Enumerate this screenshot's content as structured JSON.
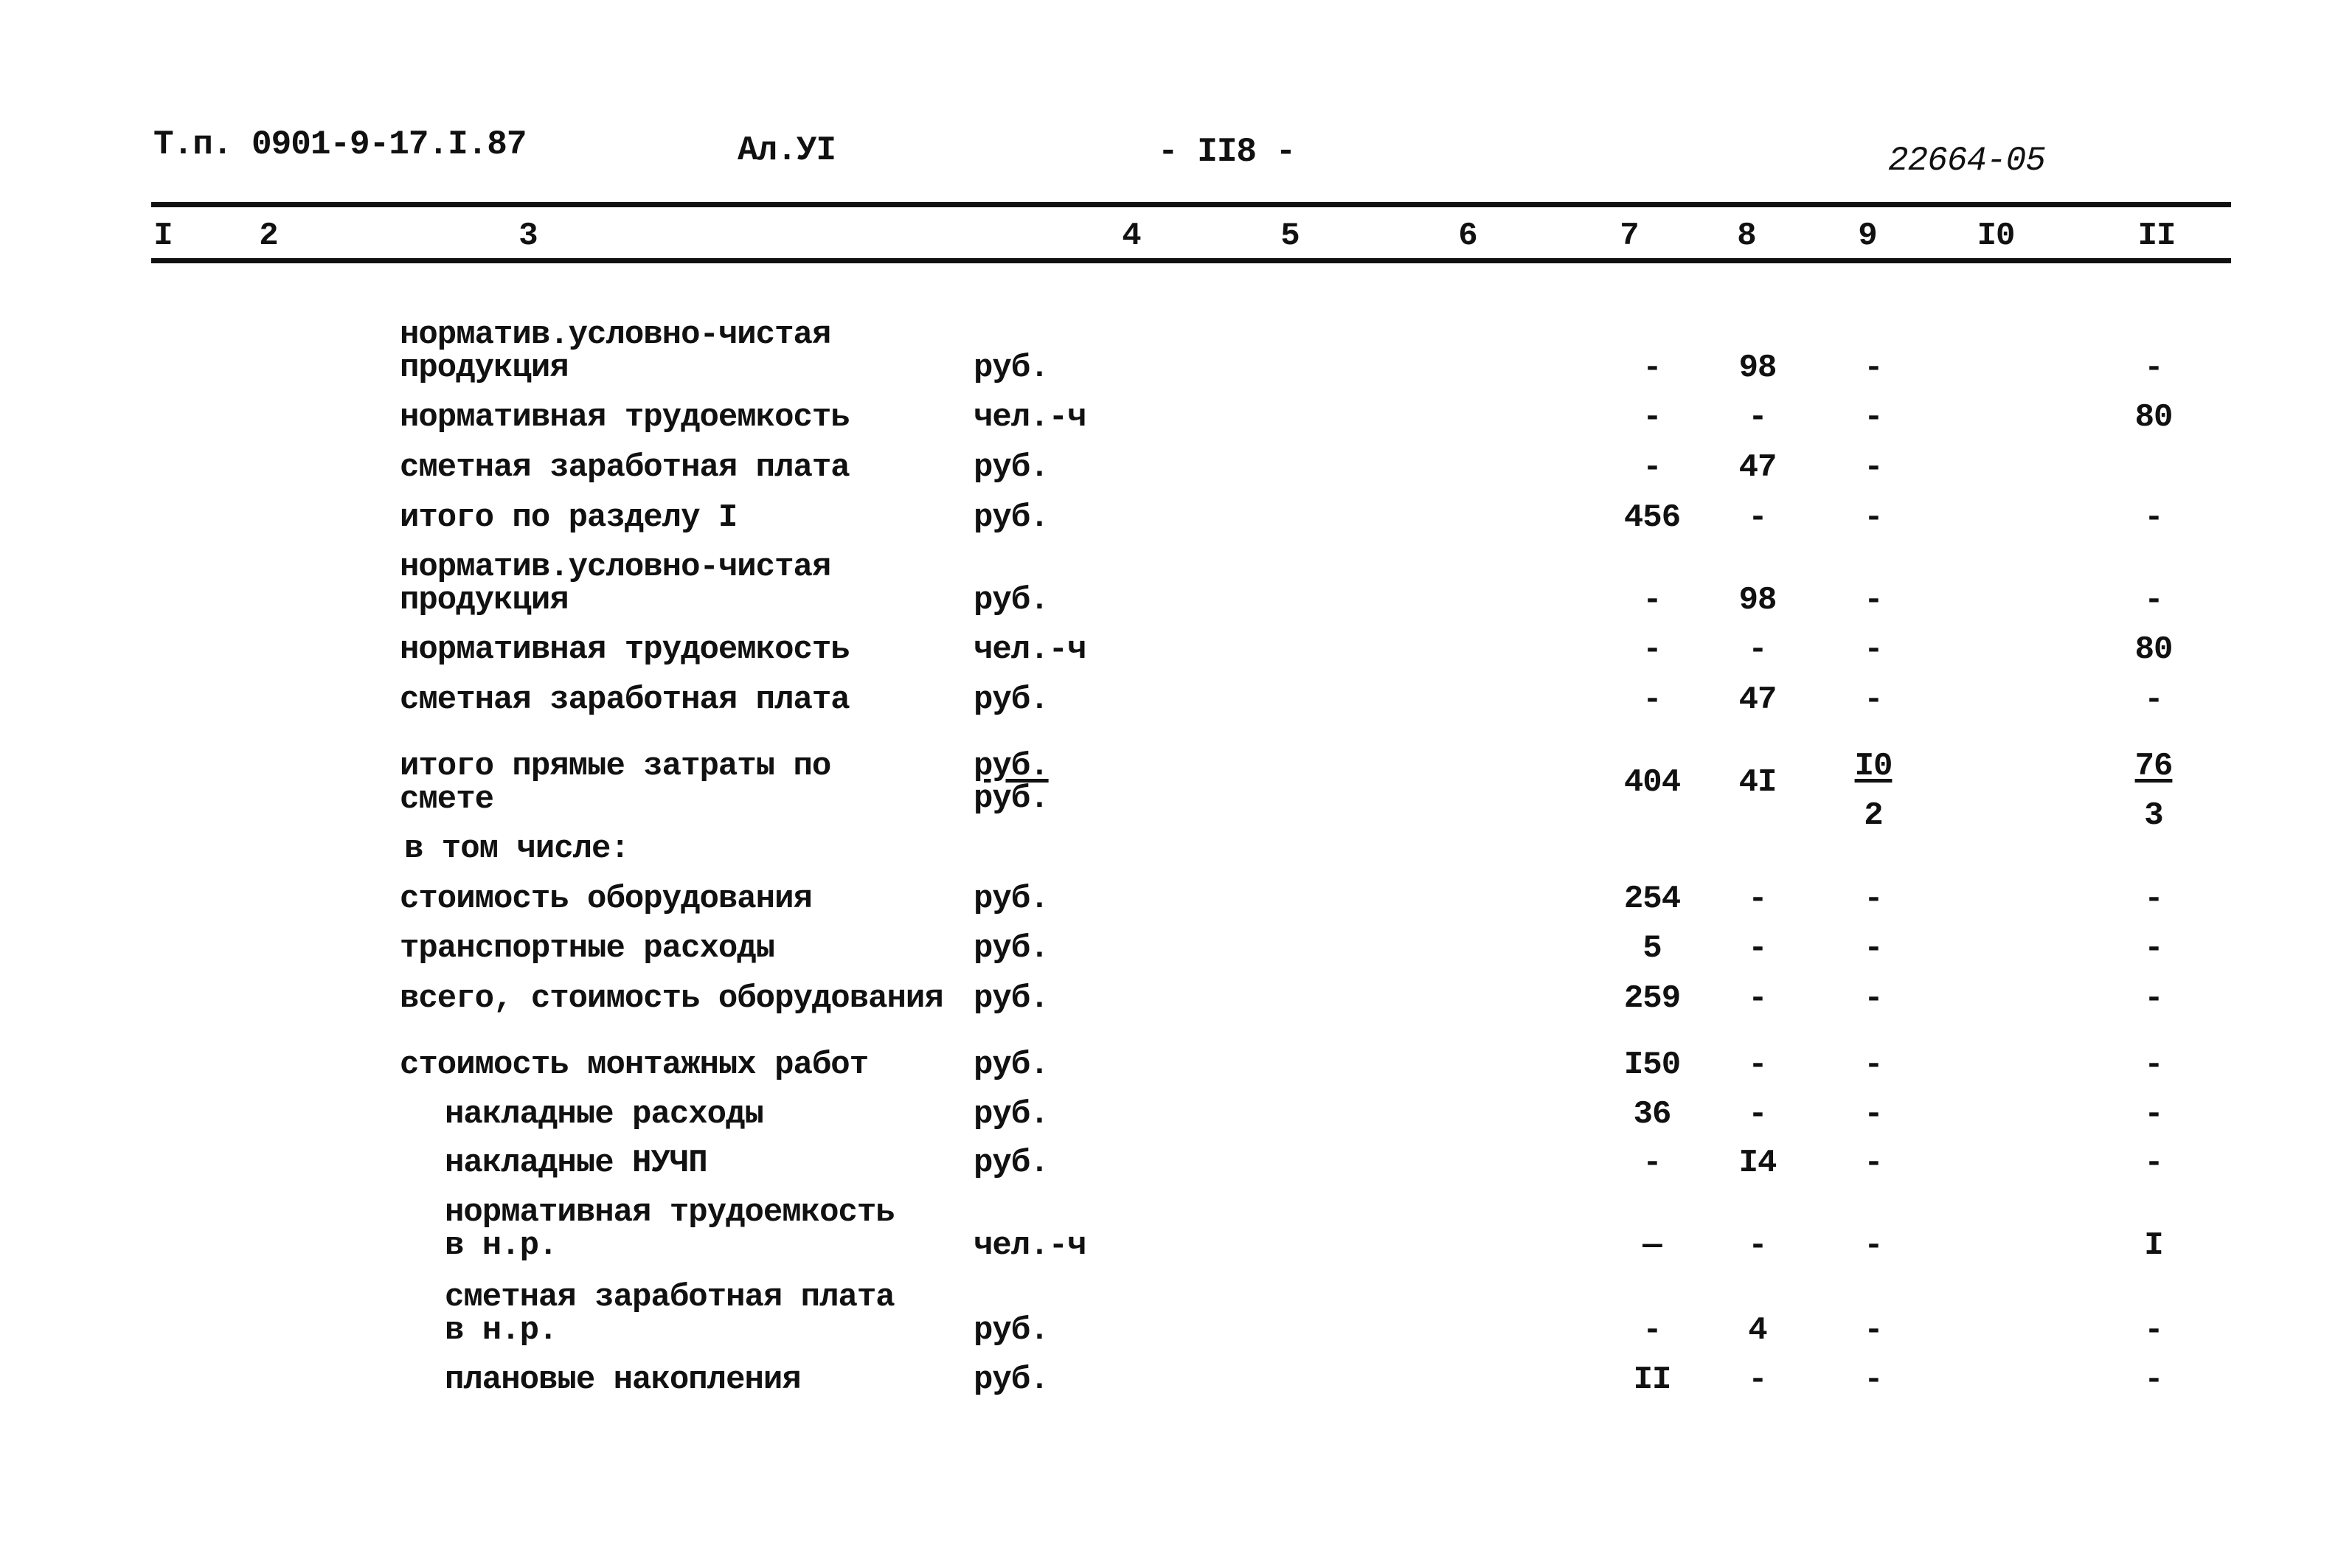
{
  "header": {
    "doc_code": "Т.п. 0901-9-17.I.87",
    "album": "Ал.УI",
    "page": "- II8 -",
    "stamp": "22664-05"
  },
  "column_numbers": [
    "I",
    "2",
    "3",
    "4",
    "5",
    "6",
    "7",
    "8",
    "9",
    "I0",
    "II"
  ],
  "rows": [
    {
      "label": [
        "норматив.условно-чистая",
        "продукция"
      ],
      "unit": "руб.",
      "c7": "-",
      "c8": "98",
      "c9": "-",
      "c11": "-"
    },
    {
      "label": [
        "нормативная трудоемкость"
      ],
      "unit": "чел.-ч",
      "c7": "-",
      "c8": "-",
      "c9": "-",
      "c11": "80"
    },
    {
      "label": [
        "сметная заработная плата"
      ],
      "unit": "руб.",
      "c7": "-",
      "c8": "47",
      "c9": "-",
      "c11": ""
    },
    {
      "label": [
        "итого по разделу I"
      ],
      "unit": "руб.",
      "c7": "456",
      "c8": "-",
      "c9": "-",
      "c11": "-"
    },
    {
      "label": [
        "норматив.условно-чистая",
        "продукция"
      ],
      "unit": "руб.",
      "c7": "-",
      "c8": "98",
      "c9": "-",
      "c11": "-"
    },
    {
      "label": [
        "нормативная трудоемкость"
      ],
      "unit": "чел.-ч",
      "c7": "-",
      "c8": "-",
      "c9": "-",
      "c11": "80"
    },
    {
      "label": [
        "сметная заработная плата"
      ],
      "unit": "руб.",
      "c7": "-",
      "c8": "47",
      "c9": "-",
      "c11": "-"
    },
    {
      "label": [
        "итого прямые затраты по",
        "смете"
      ],
      "unit": "руб.",
      "unit2": "руб.",
      "c7": "404",
      "c8": "4I",
      "c9": "I0",
      "c9_den": "2",
      "c11": "76",
      "c11_den": "3"
    },
    {
      "label": [
        "в том числе:"
      ],
      "unit": "",
      "c7": "",
      "c8": "",
      "c9": "",
      "c11": ""
    },
    {
      "label": [
        "стоимость оборудования"
      ],
      "unit": "руб.",
      "c7": "254",
      "c8": "-",
      "c9": "-",
      "c11": "-"
    },
    {
      "label": [
        "транспортные расходы"
      ],
      "unit": "руб.",
      "c7": "5",
      "c8": "-",
      "c9": "-",
      "c11": "-"
    },
    {
      "label": [
        "всего, стоимость оборудования"
      ],
      "unit": "руб.",
      "c7": "259",
      "c8": "-",
      "c9": "-",
      "c11": "-"
    },
    {
      "label": [
        "стоимость монтажных работ"
      ],
      "unit": "руб.",
      "c7": "I50",
      "c8": "-",
      "c9": "-",
      "c11": "-"
    },
    {
      "label": [
        "накладные расходы"
      ],
      "unit": "руб.",
      "c7": "36",
      "c8": "-",
      "c9": "-",
      "c11": "-"
    },
    {
      "label": [
        "накладные НУЧП"
      ],
      "unit": "руб.",
      "c7": "-",
      "c8": "I4",
      "c9": "-",
      "c11": "-"
    },
    {
      "label": [
        "нормативная трудоемкость",
        "в н.р."
      ],
      "unit": "чел.-ч",
      "c7": "—",
      "c8": "-",
      "c9": "-",
      "c11": "I"
    },
    {
      "label": [
        "сметная заработная плата",
        "в н.р."
      ],
      "unit": "руб.",
      "c7": "-",
      "c8": "4",
      "c9": "-",
      "c11": "-"
    },
    {
      "label": [
        "плановые накопления"
      ],
      "unit": "руб.",
      "c7": "II",
      "c8": "-",
      "c9": "-",
      "c11": "-"
    }
  ]
}
